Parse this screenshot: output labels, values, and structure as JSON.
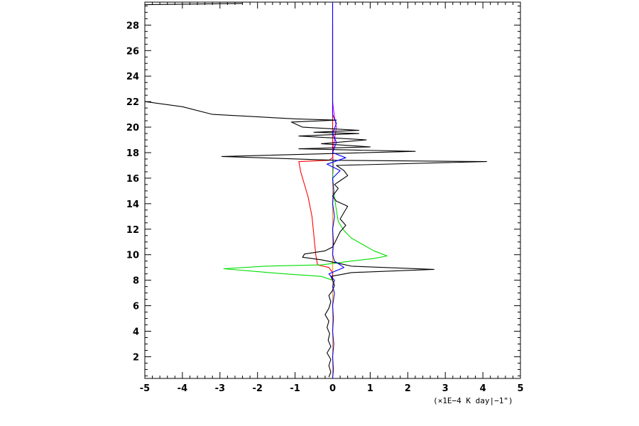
{
  "chart_data": {
    "type": "line",
    "title": "",
    "xlabel": "",
    "ylabel": "",
    "x_unit_label": "(×1E−4 K day|−1\")",
    "xlim": [
      -5,
      5
    ],
    "ylim": [
      0.3,
      29.8
    ],
    "x_ticks": [
      -5,
      -4,
      -3,
      -2,
      -1,
      0,
      1,
      2,
      3,
      4,
      5
    ],
    "x_tick_labels": [
      "-5",
      "-4",
      "-3",
      "-2",
      "-1",
      "0",
      "1",
      "2",
      "3",
      "4",
      "5"
    ],
    "y_ticks": [
      2,
      4,
      6,
      8,
      10,
      12,
      14,
      16,
      18,
      20,
      22,
      24,
      26,
      28
    ],
    "y_tick_labels": [
      "2",
      "4",
      "6",
      "8",
      "10",
      "12",
      "14",
      "16",
      "18",
      "20",
      "22",
      "24",
      "26",
      "28"
    ],
    "grid": false,
    "legend": "none",
    "series": [
      {
        "color": "#000000",
        "points": [
          [
            -0.1,
            0.4
          ],
          [
            -0.05,
            0.8
          ],
          [
            -0.1,
            1.3
          ],
          [
            -0.05,
            1.8
          ],
          [
            -0.15,
            2.3
          ],
          [
            -0.05,
            2.8
          ],
          [
            -0.12,
            3.3
          ],
          [
            -0.08,
            3.8
          ],
          [
            -0.15,
            4.3
          ],
          [
            -0.1,
            4.8
          ],
          [
            -0.2,
            5.3
          ],
          [
            -0.1,
            5.8
          ],
          [
            -0.05,
            6.3
          ],
          [
            -0.1,
            6.8
          ],
          [
            0.0,
            7.2
          ],
          [
            0.05,
            7.6
          ],
          [
            0.0,
            8.0
          ],
          [
            -0.05,
            8.3
          ],
          [
            0.5,
            8.6
          ],
          [
            2.7,
            8.85
          ],
          [
            0.5,
            9.1
          ],
          [
            0.2,
            9.3
          ],
          [
            -0.3,
            9.6
          ],
          [
            -0.8,
            9.8
          ],
          [
            -0.75,
            10.05
          ],
          [
            -0.2,
            10.3
          ],
          [
            0.0,
            10.6
          ],
          [
            0.1,
            11.2
          ],
          [
            0.2,
            11.8
          ],
          [
            0.35,
            12.3
          ],
          [
            0.2,
            12.8
          ],
          [
            0.3,
            13.3
          ],
          [
            0.4,
            13.8
          ],
          [
            0.1,
            14.2
          ],
          [
            0.0,
            14.6
          ],
          [
            0.15,
            15.2
          ],
          [
            0.05,
            15.5
          ],
          [
            0.2,
            15.8
          ],
          [
            0.4,
            16.2
          ],
          [
            0.3,
            16.6
          ],
          [
            0.1,
            17.0
          ],
          [
            4.1,
            17.3
          ],
          [
            0.1,
            17.4
          ],
          [
            -2.95,
            17.7
          ],
          [
            2.2,
            18.1
          ],
          [
            -0.9,
            18.3
          ],
          [
            1.0,
            18.45
          ],
          [
            -0.3,
            18.7
          ],
          [
            0.9,
            19.0
          ],
          [
            -0.9,
            19.3
          ],
          [
            0.7,
            19.5
          ],
          [
            -0.5,
            19.6
          ],
          [
            0.7,
            19.75
          ],
          [
            -0.8,
            20.0
          ],
          [
            -1.1,
            20.4
          ],
          [
            0.1,
            20.55
          ],
          [
            -1.0,
            20.65
          ],
          [
            -3.2,
            21.0
          ],
          [
            -4.0,
            21.6
          ],
          [
            -5.0,
            22.0
          ]
        ]
      },
      {
        "color": "#000000",
        "points": [
          [
            -5.0,
            29.6
          ],
          [
            -2.4,
            29.7
          ]
        ]
      },
      {
        "color": "#ff0000",
        "points": [
          [
            0.0,
            8.0
          ],
          [
            0.0,
            8.6
          ],
          [
            -0.1,
            9.0
          ],
          [
            -0.4,
            9.2
          ],
          [
            -0.45,
            10.0
          ],
          [
            -0.5,
            11.5
          ],
          [
            -0.55,
            13.0
          ],
          [
            -0.65,
            14.5
          ],
          [
            -0.75,
            15.5
          ],
          [
            -0.85,
            16.5
          ],
          [
            -0.9,
            17.3
          ],
          [
            -0.1,
            17.4
          ],
          [
            0.0,
            17.6
          ],
          [
            0.0,
            28.0
          ]
        ]
      },
      {
        "color": "#00dd00",
        "points": [
          [
            0.0,
            8.0
          ],
          [
            -0.3,
            8.3
          ],
          [
            -1.5,
            8.55
          ],
          [
            -2.9,
            8.9
          ],
          [
            -1.8,
            9.1
          ],
          [
            -0.3,
            9.2
          ],
          [
            0.5,
            9.5
          ],
          [
            1.1,
            9.7
          ],
          [
            1.45,
            9.9
          ],
          [
            1.1,
            10.3
          ],
          [
            0.8,
            10.8
          ],
          [
            0.5,
            11.3
          ],
          [
            0.3,
            11.9
          ],
          [
            0.15,
            12.6
          ],
          [
            0.1,
            13.5
          ],
          [
            0.05,
            14.5
          ],
          [
            0.0,
            16.0
          ],
          [
            0.0,
            17.5
          ]
        ]
      },
      {
        "color": "#ff00ff",
        "points": [
          [
            0.0,
            0.3
          ],
          [
            0.0,
            16.0
          ],
          [
            0.02,
            17.0
          ],
          [
            0.0,
            18.0
          ],
          [
            0.05,
            19.0
          ],
          [
            0.1,
            20.0
          ],
          [
            0.05,
            20.8
          ],
          [
            0.0,
            22.0
          ],
          [
            0.0,
            29.8
          ]
        ]
      },
      {
        "color": "#0000ff",
        "points": [
          [
            0.0,
            0.3
          ],
          [
            0.02,
            1.0
          ],
          [
            0.0,
            2.0
          ],
          [
            0.03,
            3.0
          ],
          [
            0.0,
            4.0
          ],
          [
            0.02,
            5.0
          ],
          [
            0.0,
            6.0
          ],
          [
            0.05,
            7.0
          ],
          [
            0.0,
            7.5
          ],
          [
            0.05,
            8.0
          ],
          [
            -0.1,
            8.5
          ],
          [
            0.3,
            9.0
          ],
          [
            0.05,
            9.5
          ],
          [
            0.0,
            10.0
          ],
          [
            0.02,
            11.0
          ],
          [
            0.0,
            12.0
          ],
          [
            0.05,
            13.0
          ],
          [
            0.0,
            14.0
          ],
          [
            0.03,
            15.0
          ],
          [
            0.0,
            16.0
          ],
          [
            0.2,
            16.6
          ],
          [
            -0.15,
            17.1
          ],
          [
            0.35,
            17.6
          ],
          [
            0.0,
            18.0
          ],
          [
            0.1,
            18.8
          ],
          [
            0.0,
            19.5
          ],
          [
            0.1,
            20.3
          ],
          [
            0.0,
            21.0
          ],
          [
            0.0,
            29.8
          ]
        ]
      },
      {
        "color": "#ffa500",
        "points": [
          [
            0.0,
            0.3
          ],
          [
            0.0,
            17.5
          ]
        ]
      }
    ]
  }
}
